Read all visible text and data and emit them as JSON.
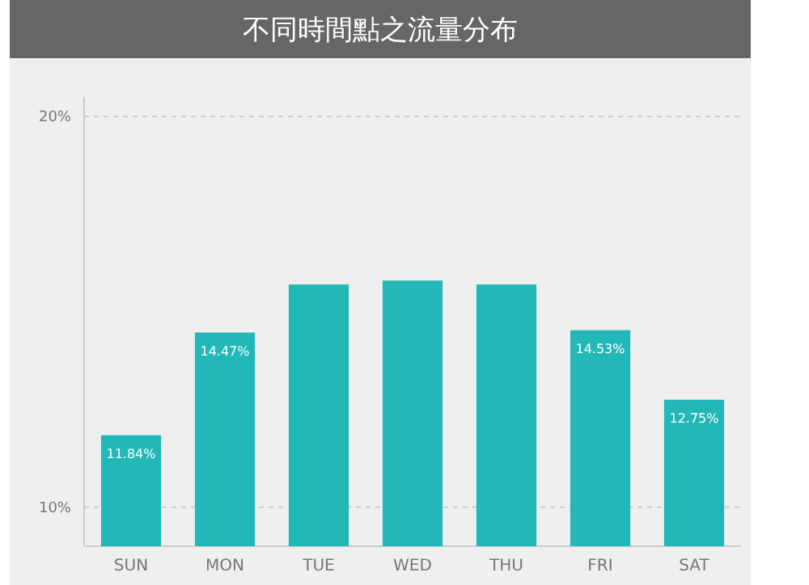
{
  "chart_data": {
    "type": "bar",
    "title": "不同時間點之流量分布",
    "categories": [
      "SUN",
      "MON",
      "TUE",
      "WED",
      "THU",
      "FRI",
      "SAT"
    ],
    "values": [
      11.84,
      14.47,
      15.7,
      15.8,
      15.7,
      14.53,
      12.75
    ],
    "value_labels": [
      "11.84%",
      "14.47%",
      null,
      null,
      null,
      "14.53%",
      "12.75%"
    ],
    "color": "#22b8b8",
    "ylim": [
      9,
      20.5
    ],
    "yticks": [
      {
        "value": 10,
        "label": "10%"
      },
      {
        "value": 20,
        "label": "20%"
      }
    ],
    "grid": "y"
  }
}
